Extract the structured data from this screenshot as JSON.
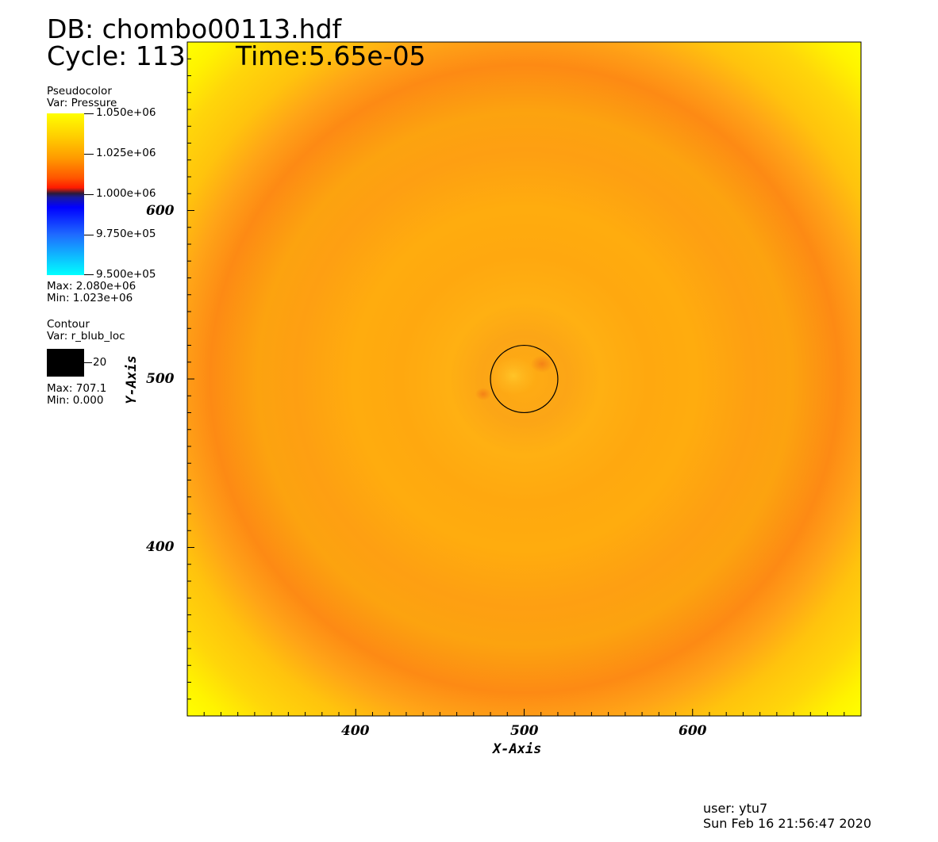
{
  "header": {
    "db": "DB: chombo00113.hdf",
    "cycle": "Cycle: 113",
    "time": "Time:5.65e-05"
  },
  "legend_pseudocolor": {
    "title": "Pseudocolor",
    "var": "Var: Pressure",
    "ticks": [
      "1.050e+06",
      "1.025e+06",
      "1.000e+06",
      "9.750e+05",
      "9.500e+05"
    ],
    "max": "Max: 2.080e+06",
    "min": "Min:  1.023e+06",
    "colors": [
      "#ffff00",
      "#ff9900",
      "#ff2a00",
      "#2b1a3a",
      "#0000ff",
      "#00ffff"
    ]
  },
  "legend_contour": {
    "title": "Contour",
    "var": "Var: r_blub_loc",
    "value": "20",
    "max": "Max: 707.1",
    "min": "Min: 0.000",
    "swatch_color": "#000000"
  },
  "footer": {
    "user": "user: ytu7",
    "date": "Sun Feb 16 21:56:47 2020"
  },
  "chart_data": {
    "type": "heatmap",
    "title": "",
    "xlabel": "X-Axis",
    "ylabel": "Y-Axis",
    "xlim": [
      300,
      700
    ],
    "ylim": [
      300,
      700
    ],
    "x_ticks": [
      400,
      500,
      600
    ],
    "y_ticks": [
      400,
      500,
      600
    ],
    "colorbar_range": [
      950000,
      1050000
    ],
    "field": "Pressure",
    "contour": {
      "variable": "r_blub_loc",
      "level": 20,
      "center": [
        500,
        500
      ]
    }
  }
}
